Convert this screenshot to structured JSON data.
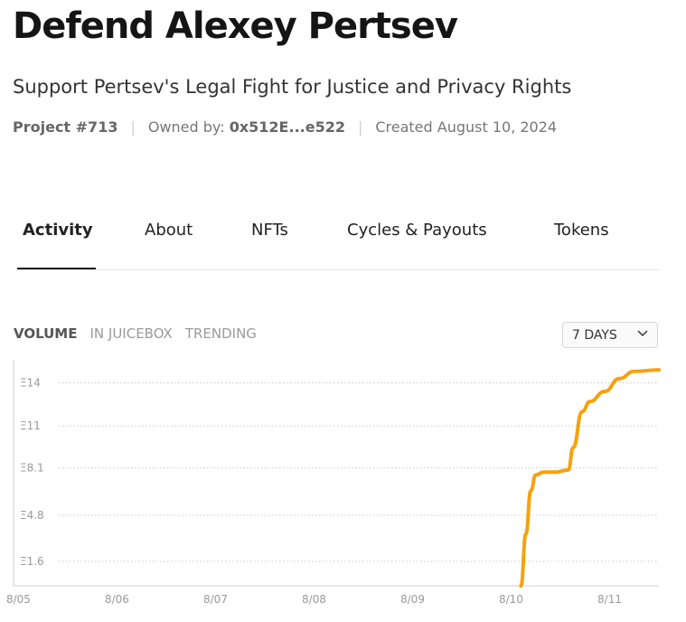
{
  "project": {
    "title": "Defend Alexey Pertsev",
    "subtitle": "Support Pertsev's Legal Fight for Justice and Privacy Rights",
    "project_number": "Project #713",
    "owned_by_label": "Owned by:",
    "owner_address": "0x512E...e522",
    "created": "Created August 10, 2024"
  },
  "tabs": [
    {
      "label": "Activity",
      "active": true
    },
    {
      "label": "About",
      "active": false
    },
    {
      "label": "NFTs",
      "active": false
    },
    {
      "label": "Cycles & Payouts",
      "active": false
    },
    {
      "label": "Tokens",
      "active": false
    }
  ],
  "chart_controls": {
    "views": [
      {
        "label": "VOLUME",
        "active": true
      },
      {
        "label": "IN JUICEBOX",
        "active": false
      },
      {
        "label": "TRENDING",
        "active": false
      }
    ],
    "range_label": "7 DAYS",
    "range_icon": "chevron-down-icon"
  },
  "colors": {
    "line": "#f5a20f",
    "grid": "#c9c9c9",
    "text_muted": "#9a9a9a"
  },
  "chart_data": {
    "type": "line",
    "title": "",
    "xlabel": "",
    "ylabel": "",
    "x_ticks": [
      "8/05",
      "8/06",
      "8/07",
      "8/08",
      "8/09",
      "8/10",
      "8/11"
    ],
    "y_ticks": [
      "Ξ1.6",
      "Ξ4.8",
      "Ξ8.1",
      "Ξ11",
      "Ξ14"
    ],
    "y_tick_values": [
      1.6,
      4.8,
      8.1,
      11,
      14
    ],
    "xlim": [
      4.95,
      11.5
    ],
    "ylim": [
      -0.1,
      15.6
    ],
    "grid": true,
    "series": [
      {
        "values": [
          [
            10.1,
            -0.1
          ],
          [
            10.15,
            3.5
          ],
          [
            10.2,
            6.5
          ],
          [
            10.25,
            7.6
          ],
          [
            10.33,
            7.8
          ],
          [
            10.45,
            7.8
          ],
          [
            10.58,
            7.95
          ],
          [
            10.63,
            9.5
          ],
          [
            10.72,
            12.0
          ],
          [
            10.8,
            12.7
          ],
          [
            10.95,
            13.4
          ],
          [
            11.1,
            14.3
          ],
          [
            11.25,
            14.8
          ],
          [
            11.5,
            14.9
          ]
        ]
      }
    ]
  }
}
